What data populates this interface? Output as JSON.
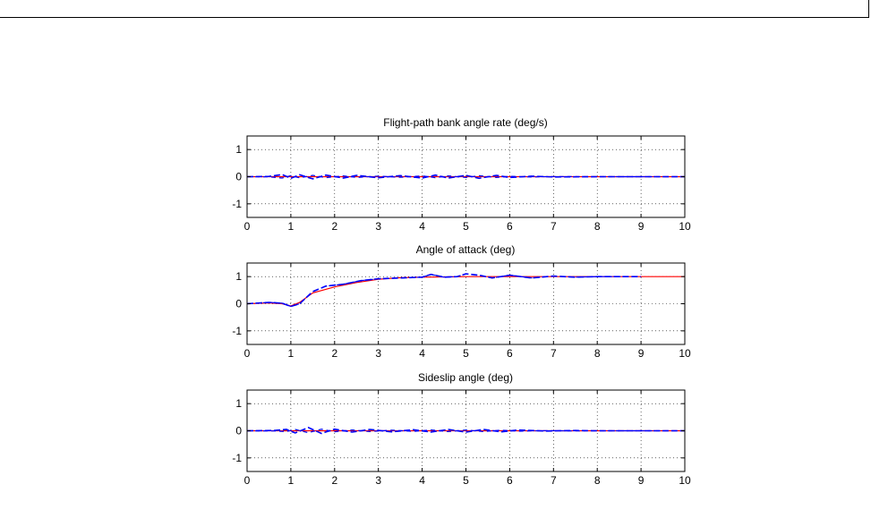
{
  "chart_data": [
    {
      "type": "line",
      "title": "Flight-path bank angle rate (deg/s)",
      "xlim": [
        0,
        10
      ],
      "ylim": [
        -1.5,
        1.5
      ],
      "xticks": [
        0,
        1,
        2,
        3,
        4,
        5,
        6,
        7,
        8,
        9,
        10
      ],
      "yticks": [
        1,
        0,
        -1
      ],
      "grid": true,
      "series": [
        {
          "style": "reference",
          "color": "#ff0000",
          "x": [
            0,
            10
          ],
          "y": [
            0,
            0
          ]
        },
        {
          "style": "simulation-ensemble",
          "color": "#0000ff",
          "x": [
            0,
            0.5,
            0.8,
            1.0,
            1.2,
            1.5,
            1.8,
            2.2,
            2.5,
            3.0,
            3.5,
            4.0,
            4.3,
            4.6,
            5.0,
            5.3,
            5.7,
            6.0,
            6.5,
            7.0,
            8.0,
            10
          ],
          "y": [
            0,
            0.01,
            0.08,
            -0.06,
            0.07,
            -0.08,
            0.06,
            -0.05,
            0.05,
            -0.04,
            0.04,
            -0.05,
            0.06,
            -0.05,
            0.05,
            -0.06,
            0.05,
            -0.03,
            0.02,
            -0.01,
            0,
            0
          ]
        }
      ]
    },
    {
      "type": "line",
      "title": "Angle of attack (deg)",
      "xlim": [
        0,
        10
      ],
      "ylim": [
        -1.5,
        1.5
      ],
      "xticks": [
        0,
        1,
        2,
        3,
        4,
        5,
        6,
        7,
        8,
        9,
        10
      ],
      "yticks": [
        1,
        0,
        -1
      ],
      "grid": true,
      "series": [
        {
          "style": "reference",
          "color": "#ff0000",
          "x": [
            0,
            0.5,
            0.8,
            1.0,
            1.2,
            1.5,
            2.0,
            2.5,
            3.0,
            3.5,
            4.0,
            5.0,
            6.0,
            7.0,
            10
          ],
          "y": [
            0,
            0.03,
            0.0,
            -0.08,
            0.05,
            0.4,
            0.62,
            0.78,
            0.9,
            0.96,
            0.98,
            1.0,
            1.0,
            1.0,
            1.0
          ]
        },
        {
          "style": "simulation-ensemble",
          "color": "#0000ff",
          "x": [
            0,
            0.5,
            0.8,
            1.0,
            1.2,
            1.5,
            1.8,
            2.2,
            2.6,
            3.0,
            3.5,
            4.0,
            4.2,
            4.5,
            4.8,
            5.0,
            5.3,
            5.6,
            6.0,
            6.5,
            7.0,
            7.5,
            8.0,
            9.0
          ],
          "y": [
            0,
            0.05,
            0.02,
            -0.1,
            0.0,
            0.45,
            0.65,
            0.72,
            0.85,
            0.92,
            0.95,
            0.98,
            1.08,
            0.98,
            1.0,
            1.1,
            1.05,
            0.95,
            1.05,
            0.95,
            1.02,
            0.98,
            1.0,
            1.0
          ]
        }
      ]
    },
    {
      "type": "line",
      "title": "Sideslip angle (deg)",
      "xlim": [
        0,
        10
      ],
      "ylim": [
        -1.5,
        1.5
      ],
      "xticks": [
        0,
        1,
        2,
        3,
        4,
        5,
        6,
        7,
        8,
        9,
        10
      ],
      "yticks": [
        1,
        0,
        -1
      ],
      "grid": true,
      "series": [
        {
          "style": "reference",
          "color": "#ff0000",
          "x": [
            0,
            10
          ],
          "y": [
            0,
            0
          ]
        },
        {
          "style": "simulation-ensemble",
          "color": "#0000ff",
          "x": [
            0,
            0.6,
            0.9,
            1.1,
            1.4,
            1.7,
            2.0,
            2.4,
            2.8,
            3.3,
            3.8,
            4.2,
            4.6,
            5.0,
            5.4,
            5.8,
            6.2,
            6.8,
            7.5,
            8.0,
            10
          ],
          "y": [
            0,
            0.01,
            0.05,
            -0.08,
            0.12,
            -0.1,
            0.06,
            -0.05,
            0.05,
            -0.04,
            0.04,
            -0.05,
            0.05,
            -0.05,
            0.05,
            -0.04,
            0.03,
            -0.01,
            0.01,
            0,
            0
          ]
        }
      ]
    }
  ]
}
